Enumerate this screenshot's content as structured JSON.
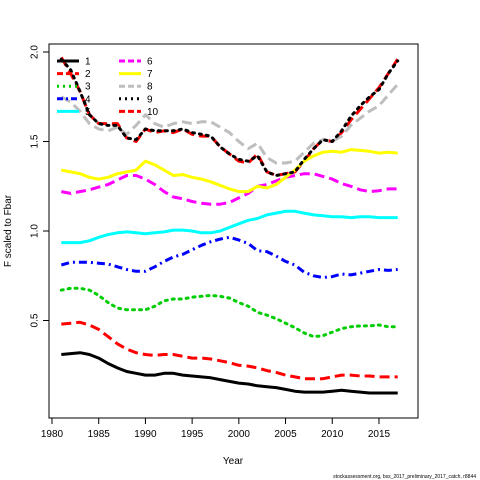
{
  "chart_data": {
    "type": "line",
    "xlabel": "Year",
    "ylabel": "F scaled to Fbar",
    "xlim": [
      1980,
      2018
    ],
    "ylim": [
      0.0,
      2.0
    ],
    "xticks": [
      1980,
      1985,
      1990,
      1995,
      2000,
      2005,
      2010,
      2015
    ],
    "yticks": [
      0.5,
      1.0,
      1.5,
      2.0
    ],
    "grid": false,
    "legend_position": "top-left",
    "footnote": "stockassessment.org, bss_2017_preliminary_2017_catch, r8844",
    "x": [
      1981,
      1982,
      1983,
      1984,
      1985,
      1986,
      1987,
      1988,
      1989,
      1990,
      1991,
      1992,
      1993,
      1994,
      1995,
      1996,
      1997,
      1998,
      1999,
      2000,
      2001,
      2002,
      2003,
      2004,
      2005,
      2006,
      2007,
      2008,
      2009,
      2010,
      2011,
      2012,
      2013,
      2014,
      2015,
      2016,
      2017
    ],
    "series": [
      {
        "name": "1",
        "color": "#000000",
        "dash": "solid",
        "values": [
          0.31,
          0.315,
          0.32,
          0.31,
          0.29,
          0.26,
          0.235,
          0.215,
          0.205,
          0.195,
          0.195,
          0.205,
          0.205,
          0.195,
          0.19,
          0.185,
          0.18,
          0.17,
          0.16,
          0.15,
          0.145,
          0.135,
          0.13,
          0.125,
          0.115,
          0.105,
          0.1,
          0.1,
          0.1,
          0.105,
          0.11,
          0.105,
          0.1,
          0.095,
          0.095,
          0.095,
          0.095
        ]
      },
      {
        "name": "2",
        "color": "#ff0000",
        "dash": "dash",
        "values": [
          1.97,
          1.88,
          1.78,
          1.65,
          1.6,
          1.6,
          1.6,
          1.52,
          1.5,
          1.57,
          1.55,
          1.56,
          1.55,
          1.57,
          1.54,
          1.53,
          1.53,
          1.47,
          1.43,
          1.39,
          1.38,
          1.43,
          1.33,
          1.31,
          1.32,
          1.33,
          1.39,
          1.46,
          1.51,
          1.5,
          1.55,
          1.62,
          1.68,
          1.74,
          1.8,
          1.88,
          1.96
        ]
      },
      {
        "name": "3",
        "color": "#00cd00",
        "dash": "dot",
        "values": [
          0.67,
          0.68,
          0.68,
          0.67,
          0.64,
          0.6,
          0.57,
          0.56,
          0.56,
          0.56,
          0.58,
          0.61,
          0.62,
          0.62,
          0.63,
          0.635,
          0.64,
          0.635,
          0.625,
          0.6,
          0.58,
          0.545,
          0.53,
          0.51,
          0.485,
          0.46,
          0.43,
          0.41,
          0.415,
          0.435,
          0.455,
          0.465,
          0.47,
          0.47,
          0.475,
          0.465,
          0.465
        ]
      },
      {
        "name": "4",
        "color": "#0000ff",
        "dash": "dashdot",
        "values": [
          0.81,
          0.825,
          0.825,
          0.825,
          0.82,
          0.815,
          0.8,
          0.785,
          0.775,
          0.775,
          0.8,
          0.83,
          0.855,
          0.87,
          0.895,
          0.92,
          0.94,
          0.955,
          0.965,
          0.95,
          0.93,
          0.89,
          0.885,
          0.86,
          0.83,
          0.81,
          0.77,
          0.75,
          0.74,
          0.745,
          0.76,
          0.755,
          0.765,
          0.775,
          0.785,
          0.78,
          0.785
        ]
      },
      {
        "name": "5",
        "color": "#00ffff",
        "dash": "solid",
        "values": [
          0.935,
          0.935,
          0.935,
          0.945,
          0.965,
          0.98,
          0.99,
          0.995,
          0.99,
          0.985,
          0.99,
          0.995,
          1.005,
          1.005,
          1.0,
          0.99,
          0.99,
          1.0,
          1.02,
          1.04,
          1.06,
          1.07,
          1.09,
          1.1,
          1.11,
          1.11,
          1.1,
          1.09,
          1.085,
          1.08,
          1.08,
          1.075,
          1.08,
          1.08,
          1.075,
          1.075,
          1.075
        ]
      },
      {
        "name": "6",
        "color": "#ff00ff",
        "dash": "dash",
        "values": [
          1.22,
          1.21,
          1.22,
          1.23,
          1.245,
          1.26,
          1.285,
          1.31,
          1.31,
          1.29,
          1.26,
          1.22,
          1.19,
          1.18,
          1.165,
          1.155,
          1.15,
          1.15,
          1.16,
          1.185,
          1.21,
          1.25,
          1.26,
          1.28,
          1.3,
          1.31,
          1.32,
          1.32,
          1.305,
          1.29,
          1.265,
          1.25,
          1.23,
          1.22,
          1.225,
          1.235,
          1.235
        ]
      },
      {
        "name": "7",
        "color": "#ffff00",
        "dash": "solid",
        "values": [
          1.34,
          1.33,
          1.32,
          1.3,
          1.29,
          1.3,
          1.32,
          1.33,
          1.34,
          1.39,
          1.37,
          1.34,
          1.31,
          1.315,
          1.3,
          1.29,
          1.275,
          1.255,
          1.235,
          1.22,
          1.22,
          1.25,
          1.24,
          1.26,
          1.3,
          1.34,
          1.39,
          1.42,
          1.44,
          1.445,
          1.44,
          1.455,
          1.45,
          1.445,
          1.435,
          1.44,
          1.435
        ]
      },
      {
        "name": "8",
        "color": "#bebebe",
        "dash": "dash",
        "values": [
          1.75,
          1.72,
          1.67,
          1.6,
          1.57,
          1.56,
          1.58,
          1.54,
          1.59,
          1.65,
          1.6,
          1.58,
          1.6,
          1.61,
          1.6,
          1.61,
          1.61,
          1.58,
          1.55,
          1.5,
          1.46,
          1.49,
          1.41,
          1.38,
          1.38,
          1.39,
          1.44,
          1.49,
          1.51,
          1.5,
          1.53,
          1.59,
          1.63,
          1.67,
          1.7,
          1.76,
          1.82
        ]
      },
      {
        "name": "9",
        "color": "#000000",
        "dash": "dot",
        "values": [
          1.96,
          1.9,
          1.78,
          1.65,
          1.6,
          1.59,
          1.59,
          1.52,
          1.51,
          1.57,
          1.56,
          1.56,
          1.56,
          1.57,
          1.55,
          1.54,
          1.53,
          1.47,
          1.43,
          1.4,
          1.39,
          1.42,
          1.33,
          1.31,
          1.32,
          1.33,
          1.4,
          1.46,
          1.51,
          1.5,
          1.56,
          1.64,
          1.7,
          1.75,
          1.79,
          1.88,
          1.95
        ]
      },
      {
        "name": "10",
        "color": "#ff0000",
        "dash": "dash",
        "values": [
          0.48,
          0.485,
          0.49,
          0.475,
          0.45,
          0.41,
          0.37,
          0.34,
          0.32,
          0.31,
          0.305,
          0.31,
          0.31,
          0.3,
          0.29,
          0.29,
          0.285,
          0.275,
          0.265,
          0.25,
          0.245,
          0.235,
          0.22,
          0.21,
          0.195,
          0.185,
          0.175,
          0.175,
          0.175,
          0.185,
          0.195,
          0.195,
          0.19,
          0.19,
          0.185,
          0.185,
          0.185
        ]
      }
    ]
  }
}
